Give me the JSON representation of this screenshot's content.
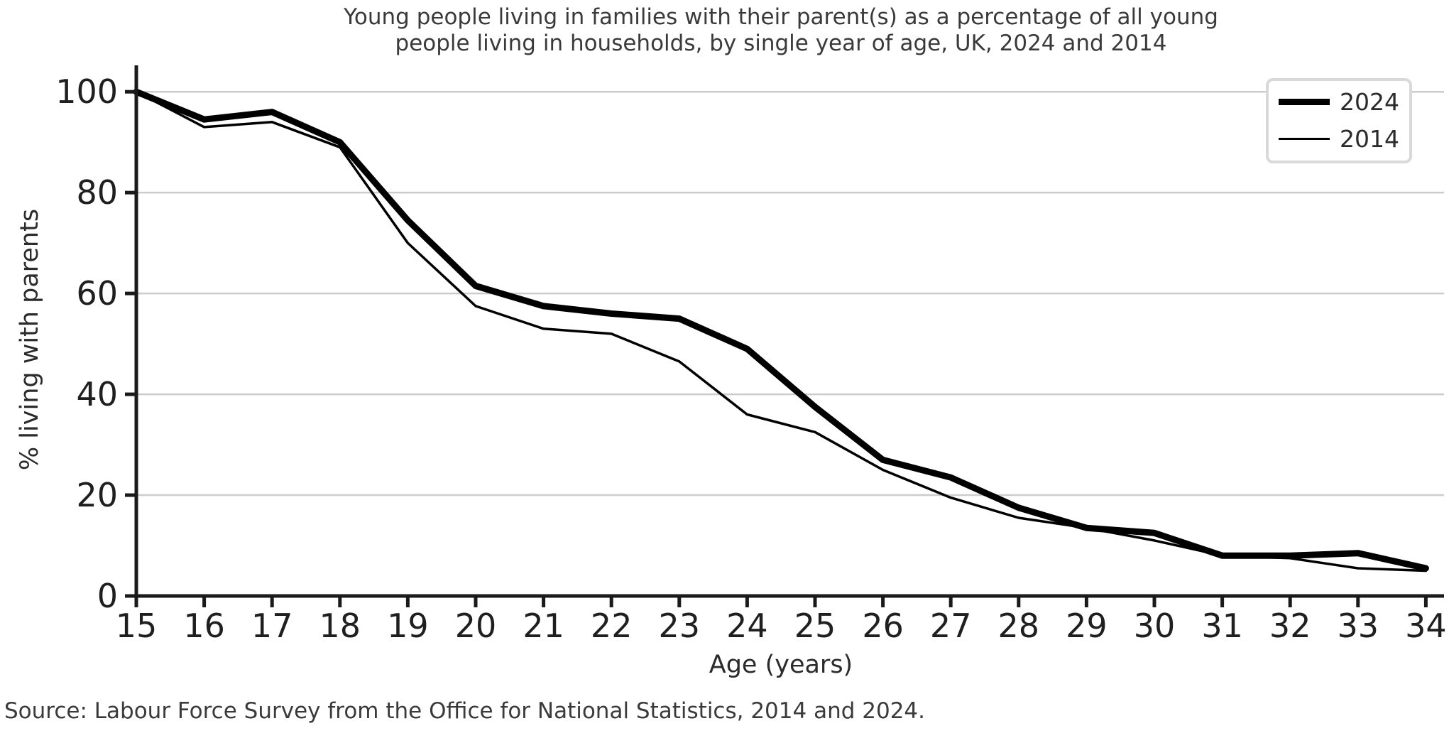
{
  "title": {
    "line1": "Young people living in families with their parent(s) as a percentage of all young",
    "line2": "people living in households, by single year of age, UK, 2024 and 2014"
  },
  "source": {
    "note": "Source: Labour Force Survey from the Office for National Statistics, 2014 and 2024."
  },
  "legend": {
    "position": "top-right"
  },
  "colors": {
    "line": "#000000",
    "grid": "#cccccc",
    "axis": "#1a1a1a",
    "tick_label": "#1f1f1f",
    "text": "#3a3a3a"
  },
  "chart_data": {
    "type": "line",
    "title": "Young people living in families with their parent(s) as a percentage of all young people living in households, by single year of age, UK, 2024 and 2014",
    "xlabel": "Age (years)",
    "ylabel": "% living with parents",
    "x": [
      15,
      16,
      17,
      18,
      19,
      20,
      21,
      22,
      23,
      24,
      25,
      26,
      27,
      28,
      29,
      30,
      31,
      32,
      33,
      34
    ],
    "series": [
      {
        "name": "2024",
        "values": [
          100,
          94.5,
          96,
          90,
          74.5,
          61.5,
          57.5,
          56,
          55,
          49,
          37.5,
          27,
          23.5,
          17.5,
          13.5,
          12.5,
          8,
          8,
          8.5,
          5.5
        ],
        "style": "thick"
      },
      {
        "name": "2014",
        "values": [
          100,
          93,
          94,
          89,
          70,
          57.5,
          53,
          52,
          46.5,
          36,
          32.5,
          25,
          19.5,
          15.5,
          13.5,
          11,
          8,
          7.5,
          5.5,
          5
        ],
        "style": "thin"
      }
    ],
    "x_ticks": [
      15,
      16,
      17,
      18,
      19,
      20,
      21,
      22,
      23,
      24,
      25,
      26,
      27,
      28,
      29,
      30,
      31,
      32,
      33,
      34
    ],
    "y_ticks": [
      0,
      20,
      40,
      60,
      80,
      100
    ],
    "xlim": [
      15,
      34
    ],
    "ylim": [
      0,
      105
    ],
    "grid": "horizontal",
    "legend_position": "top-right"
  }
}
